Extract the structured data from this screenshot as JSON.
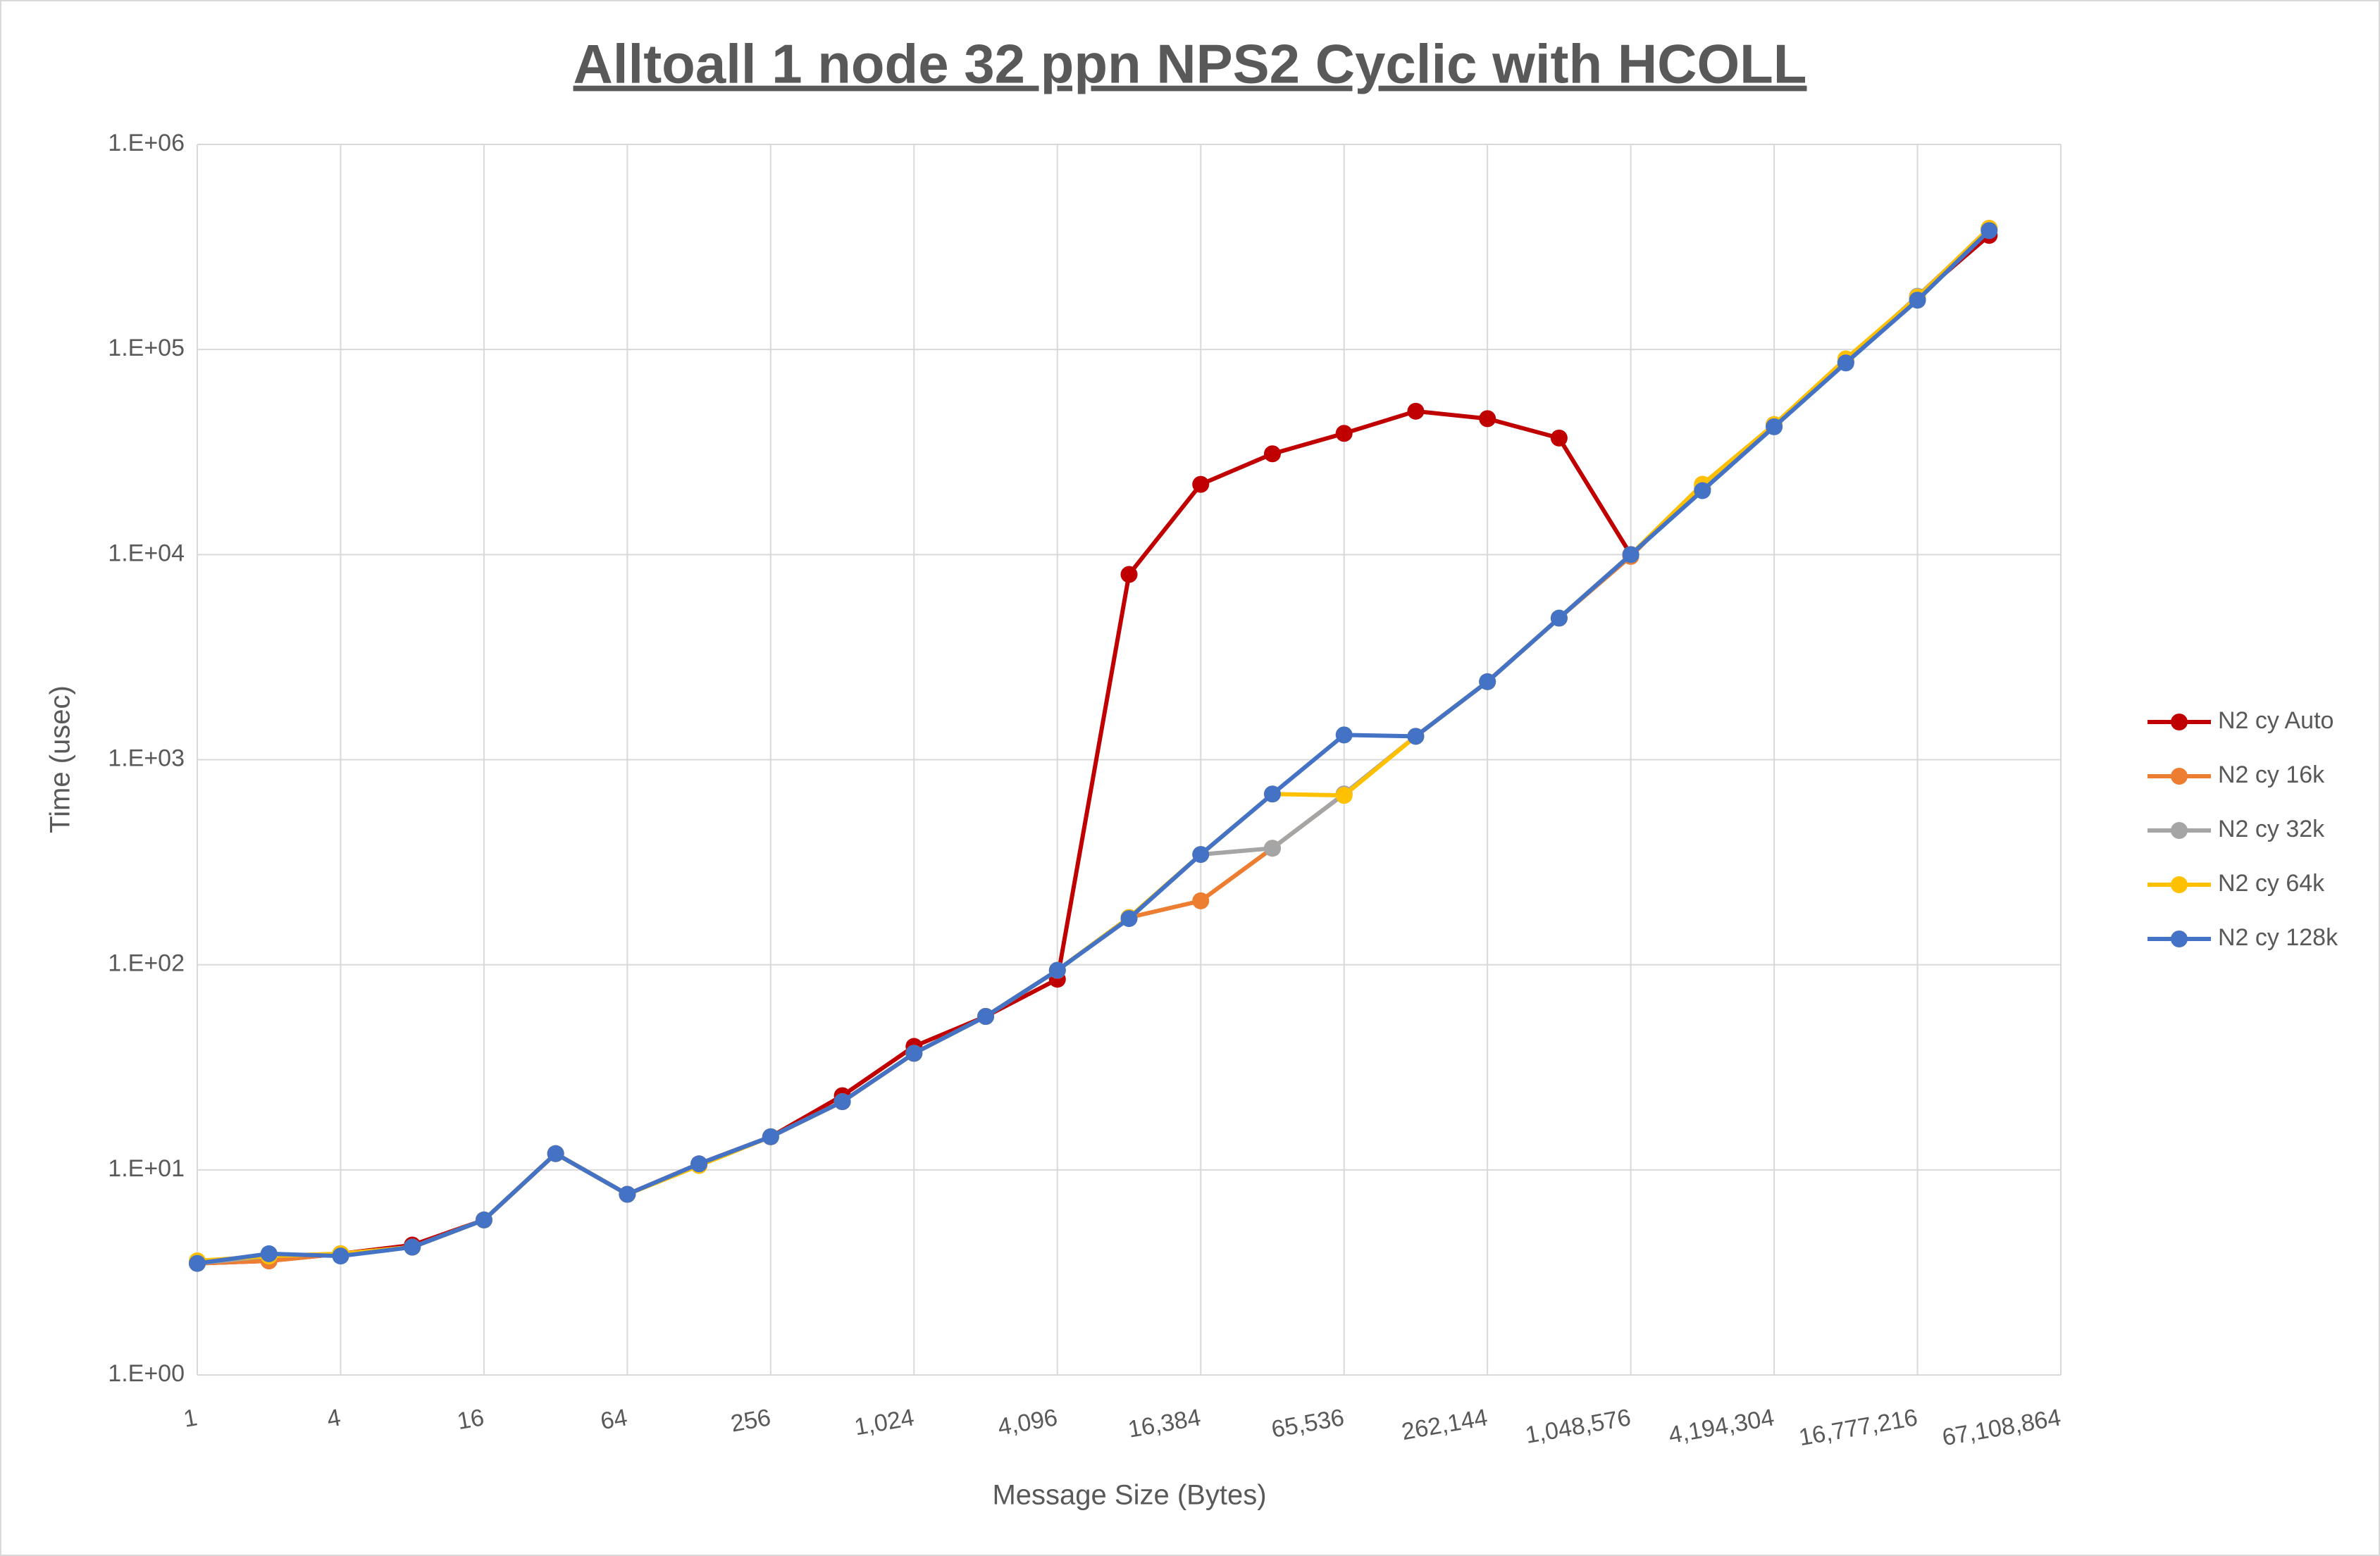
{
  "chart_data": {
    "type": "line",
    "title": "Alltoall 1 node 32 ppn NPS2 Cyclic with HCOLL",
    "x_label": "Message Size (Bytes)",
    "y_label": "Time (usec)",
    "x_scale": "log",
    "y_scale": "log",
    "grid": true,
    "legend": "right",
    "x": [
      1,
      2,
      4,
      8,
      16,
      32,
      64,
      128,
      256,
      512,
      1024,
      2048,
      4096,
      8192,
      16384,
      32768,
      65536,
      131072,
      262144,
      524288,
      1048576,
      2097152,
      4194304,
      8388608,
      16777216,
      33554432
    ],
    "xlim": [
      1,
      67108864
    ],
    "xticks": [
      1,
      4,
      16,
      64,
      256,
      {
        "value": 1024,
        "label": "1,024"
      },
      {
        "value": 4096,
        "label": "4,096"
      },
      {
        "value": 16384,
        "label": "16,384"
      },
      {
        "value": 65536,
        "label": "65,536"
      },
      {
        "value": 262144,
        "label": "262,144"
      },
      {
        "value": 1048576,
        "label": "1,048,576"
      },
      {
        "value": 4194304,
        "label": "4,194,304"
      },
      {
        "value": 16777216,
        "label": "16,777,216"
      },
      {
        "value": 67108864,
        "label": "67,108,864"
      }
    ],
    "ylim": [
      1,
      1000000
    ],
    "yticks": [
      {
        "value": 1,
        "label": "1.E+00"
      },
      {
        "value": 10,
        "label": "1.E+01"
      },
      {
        "value": 100,
        "label": "1.E+02"
      },
      {
        "value": 1000,
        "label": "1.E+03"
      },
      {
        "value": 10000,
        "label": "1.E+04"
      },
      {
        "value": 100000,
        "label": "1.E+05"
      },
      {
        "value": 1000000,
        "label": "1.E+06"
      }
    ],
    "series": [
      {
        "name": "N2 cy Auto",
        "color": "#c00000",
        "values": [
          3.5,
          3.6,
          3.9,
          4.3,
          5.7,
          12,
          7.6,
          10.7,
          14.5,
          23,
          40,
          56,
          85,
          8000,
          22000,
          31000,
          39000,
          50000,
          46000,
          37000,
          10000,
          21000,
          43000,
          87000,
          180000,
          360000
        ]
      },
      {
        "name": "N2 cy 16k",
        "color": "#ed7d31",
        "values": [
          3.5,
          3.6,
          3.9,
          4.2,
          5.7,
          12,
          7.6,
          10.6,
          14.5,
          21.5,
          37,
          56,
          94,
          170,
          205,
          370,
          680,
          1300,
          2400,
          4900,
          9800,
          22000,
          43000,
          88000,
          180000,
          390000
        ]
      },
      {
        "name": "N2 cy 32k",
        "color": "#a5a5a5",
        "values": [
          3.5,
          3.8,
          3.9,
          4.2,
          5.7,
          12,
          7.6,
          10.6,
          14.5,
          21.5,
          37,
          56,
          94,
          170,
          345,
          370,
          680,
          1300,
          2400,
          4900,
          10000,
          21500,
          43000,
          88000,
          182000,
          385000
        ]
      },
      {
        "name": "N2 cy 64k",
        "color": "#ffc000",
        "values": [
          3.6,
          3.8,
          3.9,
          4.2,
          5.7,
          12,
          7.6,
          10.5,
          14.5,
          21.5,
          37,
          56,
          94,
          170,
          345,
          680,
          670,
          1300,
          2400,
          4900,
          10000,
          22000,
          43000,
          90000,
          180000,
          390000
        ]
      },
      {
        "name": "N2 cy 128k",
        "color": "#4472c4",
        "values": [
          3.5,
          3.9,
          3.8,
          4.2,
          5.7,
          12,
          7.6,
          10.7,
          14.5,
          21.5,
          37,
          56,
          94,
          168,
          345,
          680,
          1320,
          1300,
          2400,
          4900,
          10000,
          20500,
          42000,
          86000,
          174000,
          380000
        ]
      }
    ]
  }
}
